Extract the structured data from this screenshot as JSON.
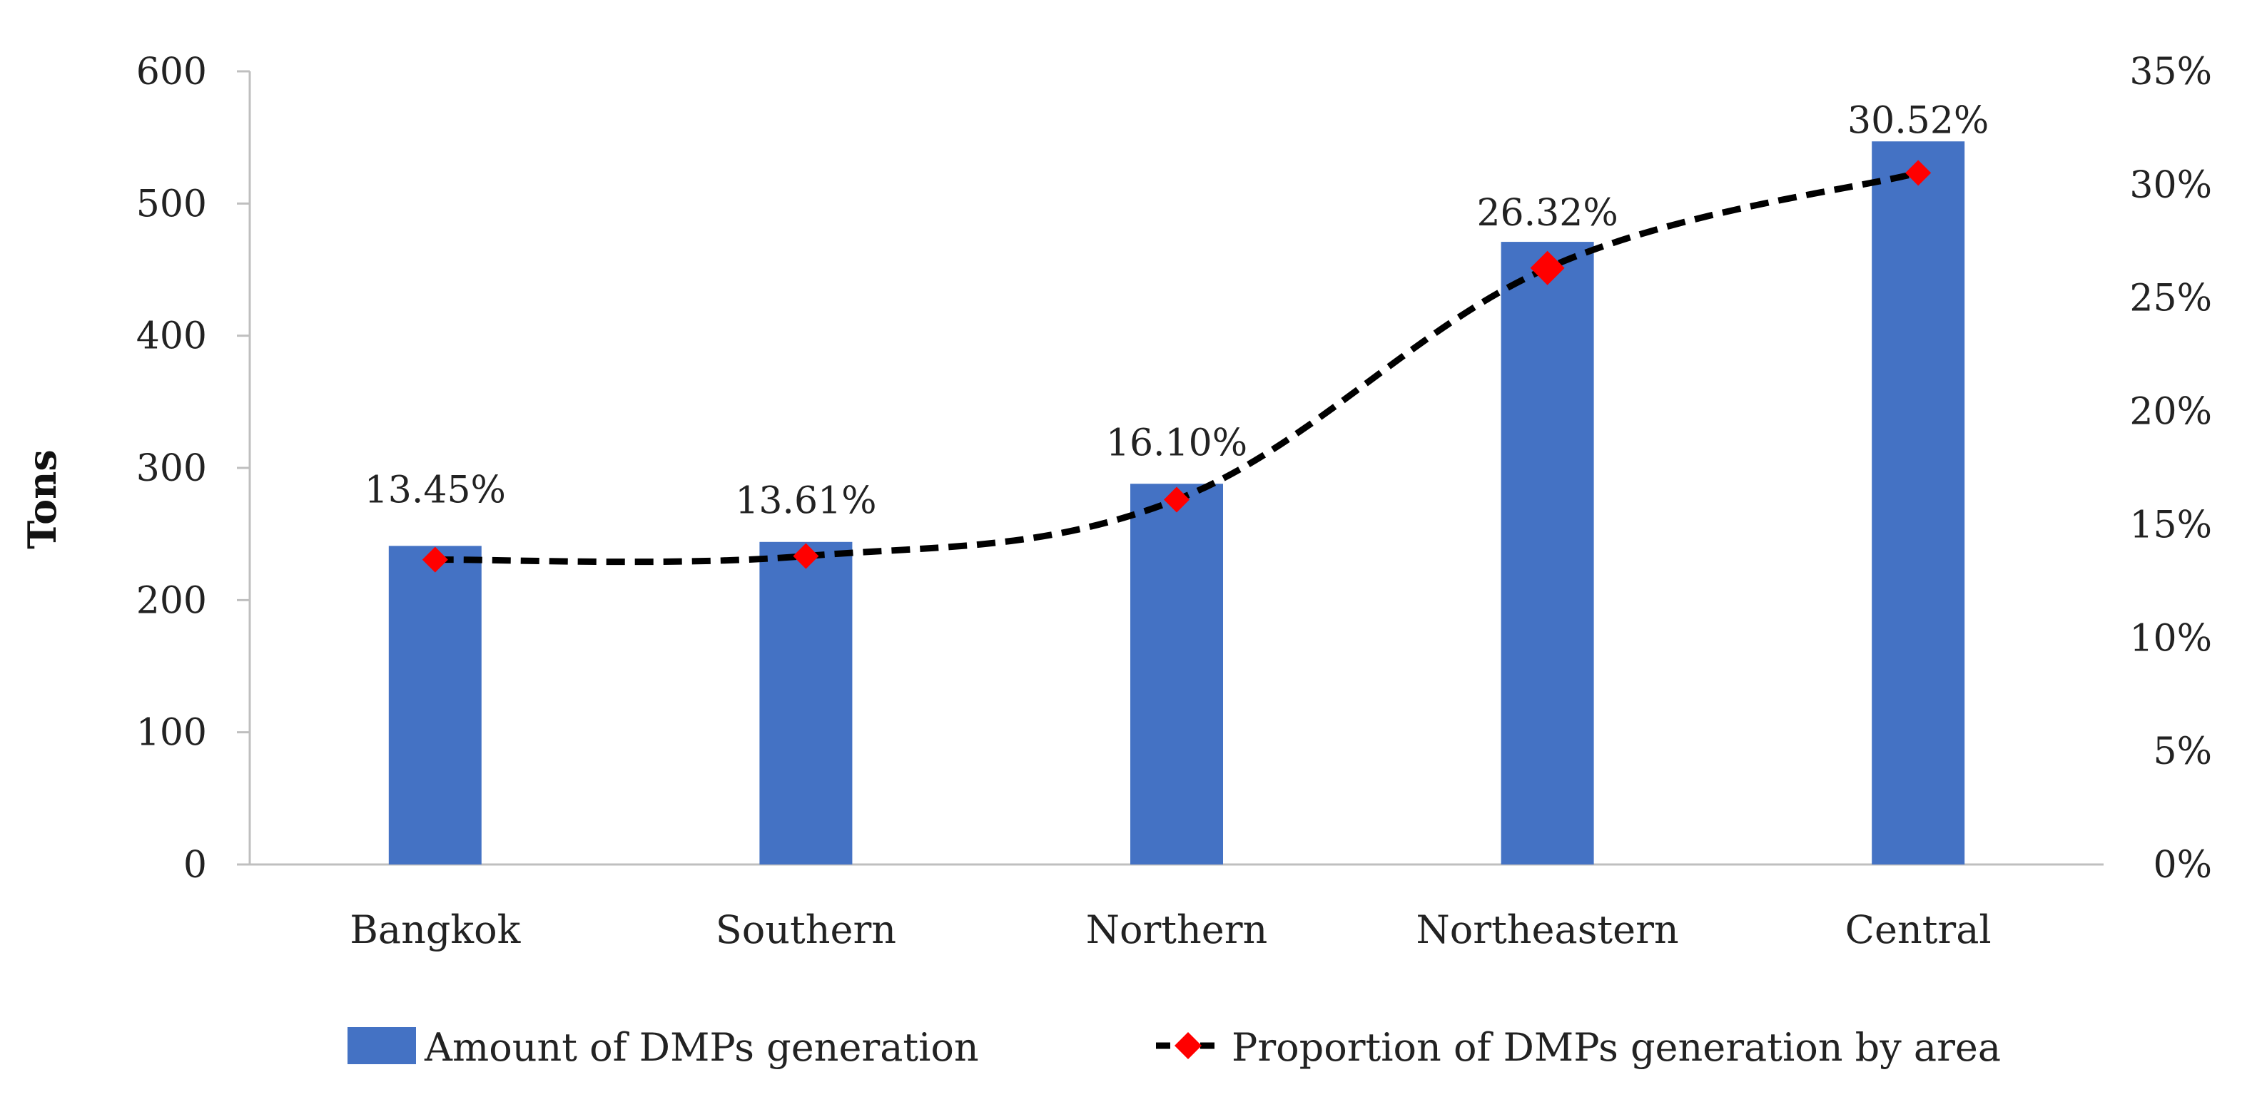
{
  "chart_data": {
    "type": "bar",
    "categories": [
      "Bangkok",
      "Southern",
      "Northern",
      "Northeastern",
      "Central"
    ],
    "series": [
      {
        "name": "Amount of DMPs generation",
        "type": "bar",
        "axis": "left",
        "color": "#4472C4",
        "values": [
          241,
          244,
          288,
          471,
          547
        ]
      },
      {
        "name": "Proportion of DMPs generation by area",
        "type": "line",
        "axis": "right",
        "color": "#000000",
        "marker_color": "#FF0000",
        "line_style": "dashed",
        "values": [
          13.45,
          13.61,
          16.1,
          26.32,
          30.52
        ],
        "labels": [
          "13.45%",
          "13.61%",
          "16.10%",
          "26.32%",
          "30.52%"
        ]
      }
    ],
    "ylabel": "Tons",
    "ylim": [
      0,
      600
    ],
    "yticks": [
      "0",
      "100",
      "200",
      "300",
      "400",
      "500",
      "600"
    ],
    "y2lim": [
      0,
      35
    ],
    "y2ticks": [
      "0%",
      "5%",
      "10%",
      "15%",
      "20%",
      "25%",
      "30%",
      "35%"
    ],
    "grid": false,
    "legend_position": "bottom"
  }
}
